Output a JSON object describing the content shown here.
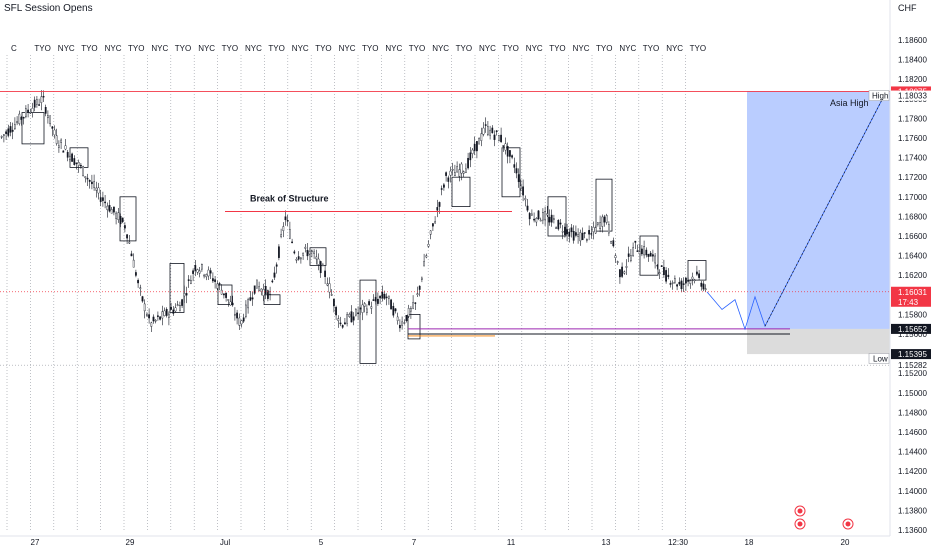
{
  "indicator": {
    "title": "SFL Session Opens"
  },
  "currency": "CHF",
  "session_labels": [
    "C",
    "TYO",
    "NYC",
    "TYO",
    "NYC",
    "TYO",
    "NYC",
    "TYO",
    "NYC",
    "TYO",
    "NYC",
    "TYO",
    "NYC",
    "TYO",
    "NYC",
    "TYO",
    "NYC",
    "TYO",
    "NYC",
    "TYO",
    "NYC",
    "TYO",
    "NYC",
    "TYO",
    "NYC",
    "TYO",
    "NYC",
    "TYO",
    "NYC",
    "TYO"
  ],
  "annotations": {
    "bos": "Break of Structure",
    "asia_high": "Asia High"
  },
  "chart_data": {
    "type": "candlestick",
    "symbol": "CHF",
    "y_ticks": [
      1.186,
      1.184,
      1.182,
      1.18,
      1.178,
      1.176,
      1.174,
      1.172,
      1.17,
      1.168,
      1.166,
      1.164,
      1.162,
      1.16,
      1.158,
      1.156,
      1.154,
      1.152,
      1.15,
      1.148,
      1.146,
      1.144,
      1.142,
      1.14,
      1.138,
      1.136
    ],
    "y_tick_labels": [
      "1.18600",
      "1.18400",
      "1.18200",
      "1.18000",
      "1.17800",
      "1.17600",
      "1.17400",
      "1.17200",
      "1.17000",
      "1.16800",
      "1.16600",
      "1.16400",
      "1.16200",
      "1.16000",
      "1.15800",
      "1.15600",
      "1.15400",
      "1.15200",
      "1.15000",
      "1.14800",
      "1.14600",
      "1.14400",
      "1.14200",
      "1.14000",
      "1.13800",
      "1.13600"
    ],
    "x_labels": [
      "27",
      "29",
      "Jul",
      "5",
      "7",
      "11",
      "13",
      "12:30",
      "18",
      "20"
    ],
    "price_badges": {
      "high_level": {
        "value": "1.18075"
      },
      "high_alt": {
        "value": "1.18033"
      },
      "current": {
        "value": "1.16031",
        "countdown": "17:43"
      },
      "stop": {
        "value": "1.15652"
      },
      "low_level": {
        "value": "1.15395"
      },
      "low_alt": {
        "value": "1.15282"
      }
    },
    "labels": {
      "high": "High",
      "low": "Low"
    },
    "levels": {
      "high": 1.18075,
      "current": 1.16031,
      "bos": 1.1685,
      "entry": 1.15652,
      "stop_bottom": 1.15395,
      "low": 1.15282
    },
    "candles_range": {
      "first_price": 1.176,
      "last_price": 1.161
    },
    "projection_prices": [
      1.1603,
      1.1585,
      1.1595,
      1.1565,
      1.1598,
      1.1568,
      1.1803
    ]
  }
}
